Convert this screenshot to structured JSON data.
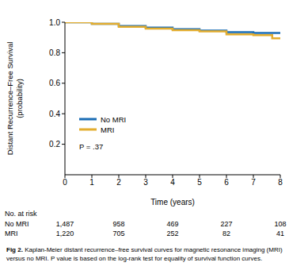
{
  "chart_data": {
    "type": "line",
    "line_style": "step",
    "y_label": [
      "Distant Recurrence–Free Survival",
      "(probability)"
    ],
    "x_label": "Time (years)",
    "annotation": "P = .37",
    "x": [
      0,
      1,
      2,
      3,
      4,
      5,
      6,
      7,
      7.7,
      8
    ],
    "series": [
      {
        "name": "No MRI",
        "color": "#1b6db5",
        "values": [
          1,
          0.99,
          0.975,
          0.965,
          0.955,
          0.945,
          0.935,
          0.93,
          0.93,
          0.93
        ]
      },
      {
        "name": "MRI",
        "color": "#e3ad2f",
        "values": [
          1,
          0.99,
          0.97,
          0.958,
          0.948,
          0.94,
          0.92,
          0.915,
          0.895,
          0.895
        ]
      }
    ],
    "xlim": [
      0,
      8
    ],
    "xticks": [
      0,
      1,
      2,
      3,
      4,
      5,
      6,
      7,
      8
    ],
    "ylim": [
      0,
      1
    ],
    "yticks": [
      0.2,
      0.4,
      0.6,
      0.8,
      {
        "value": 1,
        "label": "1.0"
      }
    ],
    "grid": false,
    "legend": "left",
    "at_risk": {
      "title": "No. at risk",
      "x": [
        0,
        2,
        4,
        6,
        8
      ],
      "rows": [
        {
          "name": "No MRI",
          "values": [
            1487,
            958,
            469,
            227,
            108
          ],
          "value_labels": [
            "1,487",
            "958",
            "469",
            "227",
            "108"
          ]
        },
        {
          "name": "MRI",
          "values": [
            1220,
            705,
            252,
            82,
            41
          ],
          "value_labels": [
            "1,220",
            "705",
            "252",
            "82",
            "41"
          ]
        }
      ]
    },
    "caption_label": "Fig 2.",
    "caption": "Kaplan-Meier distant recurrence–free survival curves for magnetic resonance imaging (MRI) versus no MRI. P value is based on the log-rank test for equality of survival function curves."
  }
}
